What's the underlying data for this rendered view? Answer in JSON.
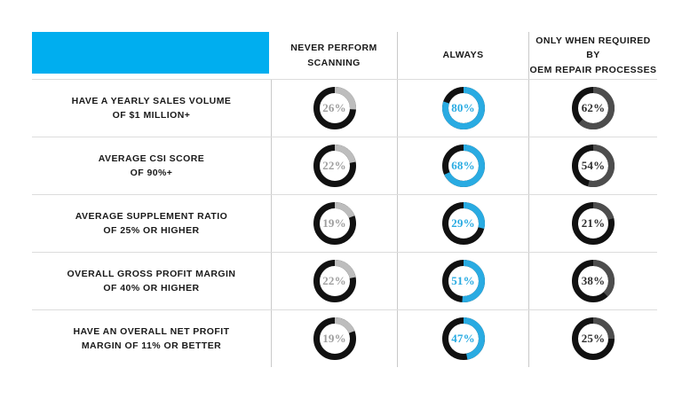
{
  "header": {
    "accent_color": "#00aeef",
    "columns": [
      {
        "lines": [
          "NEVER PERFORM",
          "SCANNING"
        ]
      },
      {
        "lines": [
          "ALWAYS"
        ]
      },
      {
        "lines": [
          "ONLY WHEN REQUIRED BY",
          "OEM REPAIR PROCESSES"
        ]
      }
    ]
  },
  "chart_data": {
    "type": "donut-grid",
    "unit": "%",
    "title": "",
    "categories": [
      "NEVER PERFORM SCANNING",
      "ALWAYS",
      "ONLY WHEN REQUIRED BY OEM REPAIR PROCESSES"
    ],
    "column_colors": [
      "#bdbdbd",
      "#29abe2",
      "#4d4d4d"
    ],
    "value_text_colors": [
      "#9f9f9f",
      "#29abe2",
      "#2e2e2e"
    ],
    "ring_remainder_color": "#111111",
    "value_range": [
      0,
      100
    ],
    "rows": [
      {
        "label_lines": [
          "HAVE A YEARLY SALES VOLUME",
          "OF $1 MILLION+"
        ],
        "values": [
          26,
          80,
          62
        ]
      },
      {
        "label_lines": [
          "AVERAGE CSI SCORE",
          "OF 90%+"
        ],
        "values": [
          22,
          68,
          54
        ]
      },
      {
        "label_lines": [
          "AVERAGE SUPPLEMENT RATIO",
          "OF 25% OR HIGHER"
        ],
        "values": [
          19,
          29,
          21
        ]
      },
      {
        "label_lines": [
          "OVERALL GROSS PROFIT MARGIN",
          "OF 40% OR HIGHER"
        ],
        "values": [
          22,
          51,
          38
        ]
      },
      {
        "label_lines": [
          "HAVE AN OVERALL NET PROFIT",
          "MARGIN OF 11% OR BETTER"
        ],
        "values": [
          19,
          47,
          25
        ]
      }
    ]
  }
}
